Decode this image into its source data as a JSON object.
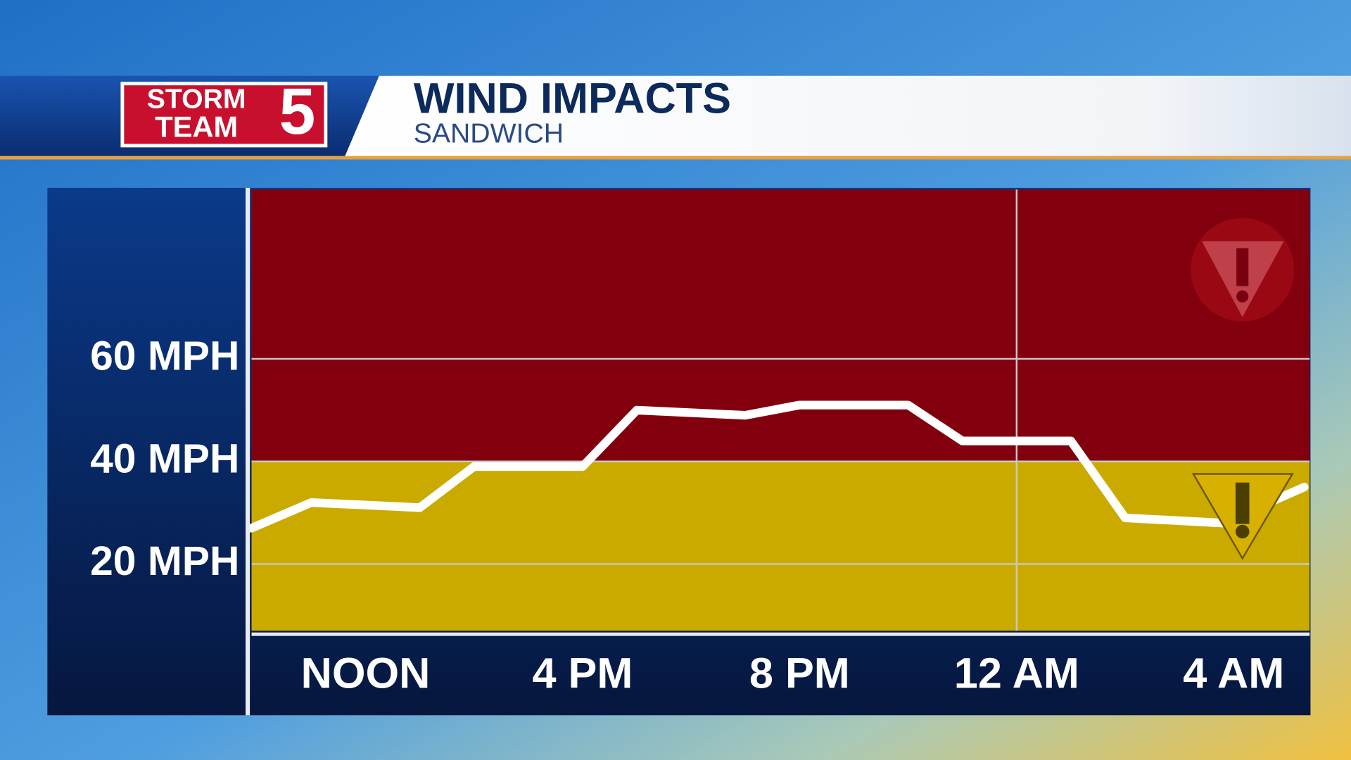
{
  "logo": {
    "line1": "STORM",
    "line2": "TEAM",
    "number": "5"
  },
  "chart_data": {
    "type": "line",
    "title": "WIND IMPACTS",
    "subtitle": "SANDWICH",
    "x": [
      9.9,
      11,
      13,
      14,
      16,
      17,
      19,
      20,
      22,
      23,
      25,
      26,
      27.8,
      29.3
    ],
    "values": [
      27,
      32,
      31,
      39,
      39,
      50,
      49,
      51,
      51,
      44,
      44,
      29,
      28,
      35
    ],
    "color": "#ffffff",
    "xlim": [
      9.9,
      29.4
    ],
    "xticks": [
      {
        "value": 12,
        "label": "NOON"
      },
      {
        "value": 16,
        "label": "4 PM"
      },
      {
        "value": 20,
        "label": "8 PM"
      },
      {
        "value": 24,
        "label": "12 AM"
      },
      {
        "value": 28,
        "label": "4 AM"
      }
    ],
    "vlines": [
      24
    ],
    "ylim": [
      7,
      93
    ],
    "yticks": [
      {
        "value": 20,
        "label": "20 MPH"
      },
      {
        "value": 40,
        "label": "40 MPH"
      },
      {
        "value": 60,
        "label": "60 MPH"
      }
    ],
    "grid": true,
    "bands": [
      {
        "to": 40,
        "color": "#cbaa00"
      },
      {
        "from": 40,
        "color": "#82000e"
      }
    ]
  }
}
